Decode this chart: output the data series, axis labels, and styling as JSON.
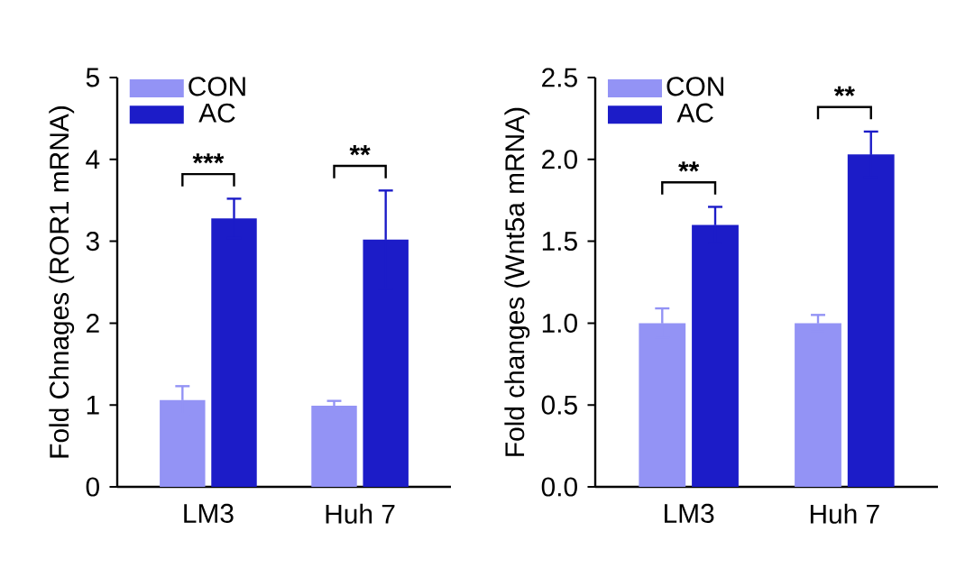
{
  "chart_data": [
    {
      "type": "bar",
      "ylabel": "Fold Chnages (ROR1 mRNA)",
      "categories": [
        "LM3",
        "Huh 7"
      ],
      "ylim": [
        0,
        5
      ],
      "yticks": [
        0,
        1,
        2,
        3,
        4,
        5
      ],
      "legend": "top left",
      "grid": false,
      "series": [
        {
          "name": "CON",
          "color": "#9393f5",
          "values": [
            1.06,
            0.99
          ],
          "errors": [
            0.17,
            0.06
          ]
        },
        {
          "name": "AC",
          "color": "#1c1cc8",
          "values": [
            3.28,
            3.02
          ],
          "errors": [
            0.24,
            0.6
          ]
        }
      ],
      "annotations": [
        "***",
        "**"
      ]
    },
    {
      "type": "bar",
      "ylabel": "Fold changes (Wnt5a mRNA)",
      "categories": [
        "LM3",
        "Huh 7"
      ],
      "ylim": [
        0,
        2.5
      ],
      "yticks": [
        {
          "value": 0,
          "label": "0.0"
        },
        {
          "value": 0.5,
          "label": "0.5"
        },
        {
          "value": 1,
          "label": "1.0"
        },
        {
          "value": 1.5,
          "label": "1.5"
        },
        {
          "value": 2,
          "label": "2.0"
        },
        {
          "value": 2.5,
          "label": "2.5"
        }
      ],
      "legend": "top left",
      "grid": false,
      "series": [
        {
          "name": "CON",
          "color": "#9393f5",
          "values": [
            1.0,
            1.0
          ],
          "errors": [
            0.09,
            0.05
          ]
        },
        {
          "name": "AC",
          "color": "#1c1cc8",
          "values": [
            1.6,
            2.03
          ],
          "errors": [
            0.11,
            0.14
          ]
        }
      ],
      "annotations": [
        "**",
        "**"
      ]
    }
  ]
}
